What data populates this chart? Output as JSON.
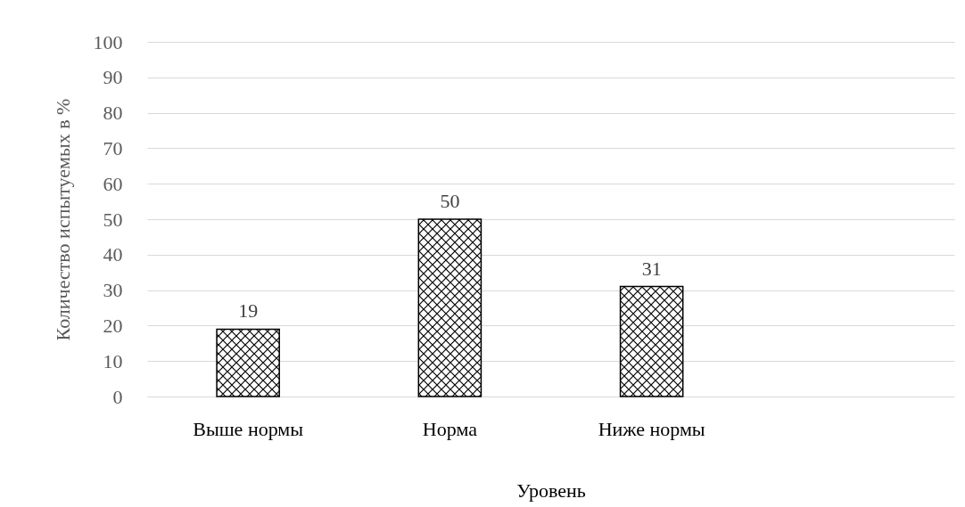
{
  "chart_data": {
    "type": "bar",
    "xlabel": "Уровень",
    "ylabel": "Количество испытуемых в %",
    "categories": [
      "Выше нормы",
      "Норма",
      "Ниже нормы",
      null
    ],
    "values": [
      19,
      50,
      31,
      null
    ],
    "color": "#000000",
    "ylim": [
      0,
      100
    ],
    "yticks": [
      0,
      10,
      20,
      30,
      40,
      50,
      60,
      70,
      80,
      90,
      100
    ],
    "grid": "y",
    "data_labels": true
  }
}
